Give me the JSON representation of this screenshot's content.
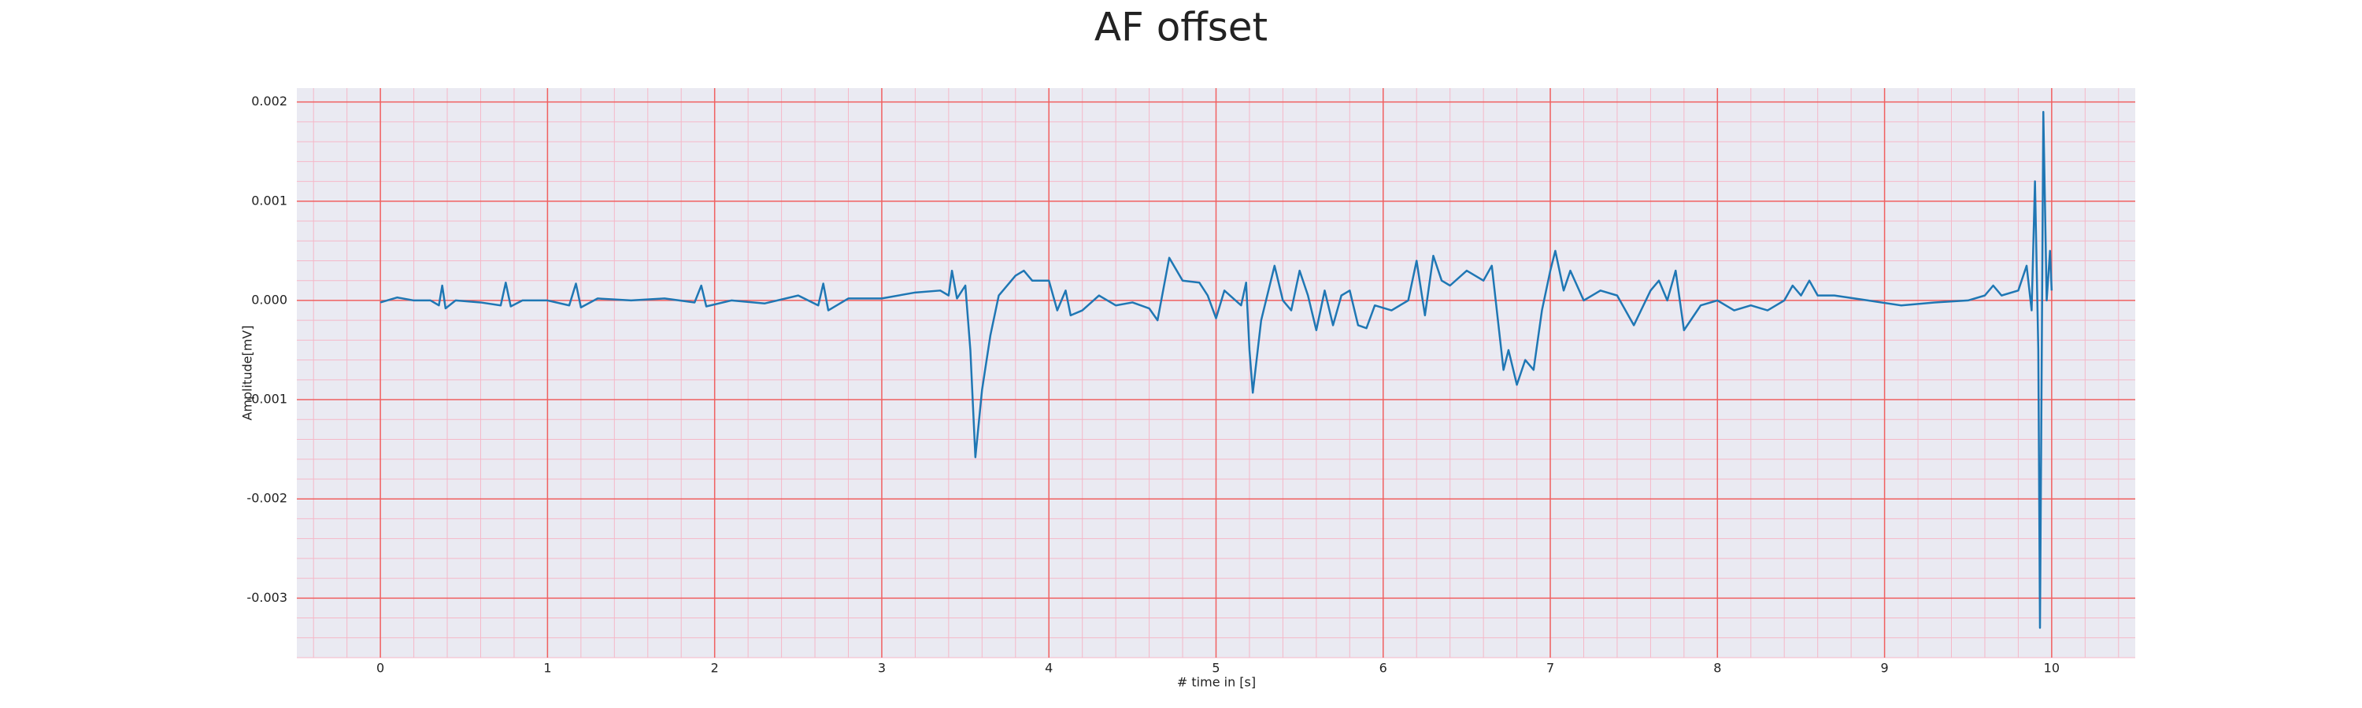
{
  "chart_data": {
    "type": "line",
    "title": "AF offset",
    "xlabel": "# time in [s]",
    "ylabel": "Amplitude[mV]",
    "x": [
      0,
      0.1,
      0.2,
      0.3,
      0.35,
      0.37,
      0.39,
      0.45,
      0.6,
      0.72,
      0.75,
      0.78,
      0.85,
      1.0,
      1.13,
      1.17,
      1.2,
      1.3,
      1.5,
      1.7,
      1.88,
      1.92,
      1.95,
      2.1,
      2.3,
      2.5,
      2.62,
      2.65,
      2.68,
      2.8,
      3.0,
      3.2,
      3.35,
      3.4,
      3.42,
      3.45,
      3.5,
      3.53,
      3.56,
      3.6,
      3.65,
      3.7,
      3.8,
      3.85,
      3.9,
      4.0,
      4.05,
      4.1,
      4.13,
      4.2,
      4.3,
      4.4,
      4.5,
      4.6,
      4.65,
      4.72,
      4.8,
      4.9,
      4.95,
      5.0,
      5.05,
      5.15,
      5.18,
      5.2,
      5.22,
      5.27,
      5.35,
      5.4,
      5.45,
      5.5,
      5.55,
      5.6,
      5.65,
      5.7,
      5.75,
      5.8,
      5.85,
      5.9,
      5.95,
      6.05,
      6.15,
      6.2,
      6.25,
      6.3,
      6.35,
      6.4,
      6.5,
      6.6,
      6.65,
      6.7,
      6.72,
      6.75,
      6.8,
      6.85,
      6.9,
      6.95,
      7.0,
      7.03,
      7.08,
      7.12,
      7.2,
      7.3,
      7.4,
      7.5,
      7.6,
      7.65,
      7.7,
      7.75,
      7.8,
      7.9,
      8.0,
      8.1,
      8.2,
      8.3,
      8.4,
      8.45,
      8.5,
      8.55,
      8.6,
      8.7,
      8.9,
      9.1,
      9.3,
      9.5,
      9.6,
      9.65,
      9.7,
      9.8,
      9.85,
      9.88,
      9.9,
      9.92,
      9.93,
      9.95,
      9.97,
      9.99,
      10.0
    ],
    "values": [
      -2e-05,
      3e-05,
      0.0,
      0.0,
      -5e-05,
      0.00015,
      -8e-05,
      0.0,
      -2e-05,
      -5e-05,
      0.00018,
      -6e-05,
      0.0,
      0.0,
      -5e-05,
      0.00017,
      -7e-05,
      2e-05,
      0.0,
      2e-05,
      -2e-05,
      0.00015,
      -6e-05,
      0.0,
      -3e-05,
      5e-05,
      -5e-05,
      0.00017,
      -0.0001,
      2e-05,
      2e-05,
      8e-05,
      0.0001,
      5e-05,
      0.0003,
      2e-05,
      0.00015,
      -0.0005,
      -0.00158,
      -0.0009,
      -0.00035,
      5e-05,
      0.00025,
      0.0003,
      0.0002,
      0.0002,
      -0.0001,
      0.0001,
      -0.00015,
      -0.0001,
      5e-05,
      -5e-05,
      -2e-05,
      -8e-05,
      -0.0002,
      0.00043,
      0.0002,
      0.00018,
      5e-05,
      -0.00018,
      0.0001,
      -5e-05,
      0.00018,
      -0.0005,
      -0.00093,
      -0.0002,
      0.00035,
      0.0,
      -0.0001,
      0.0003,
      5e-05,
      -0.0003,
      0.0001,
      -0.00025,
      5e-05,
      0.0001,
      -0.00025,
      -0.00028,
      -5e-05,
      -0.0001,
      0.0,
      0.0004,
      -0.00015,
      0.00045,
      0.0002,
      0.00015,
      0.0003,
      0.0002,
      0.00035,
      -0.0004,
      -0.0007,
      -0.0005,
      -0.00085,
      -0.0006,
      -0.0007,
      -0.0001,
      0.0003,
      0.0005,
      0.0001,
      0.0003,
      0.0,
      0.0001,
      5e-05,
      -0.00025,
      0.0001,
      0.0002,
      0.0,
      0.0003,
      -0.0003,
      -5e-05,
      0.0,
      -0.0001,
      -5e-05,
      -0.0001,
      0.0,
      0.00015,
      5e-05,
      0.0002,
      5e-05,
      5e-05,
      0.0,
      -5e-05,
      -2e-05,
      0.0,
      5e-05,
      0.00015,
      5e-05,
      0.0001,
      0.00035,
      -0.0001,
      0.0012,
      -0.0005,
      -0.0033,
      0.0019,
      0.0,
      0.0005,
      0.0001
    ],
    "color": "#1f77b4",
    "xlim": [
      -0.5,
      10.5
    ],
    "xticks": [
      0,
      1,
      2,
      3,
      4,
      5,
      6,
      7,
      8,
      9,
      10
    ],
    "ylim": [
      -0.0036,
      0.00214
    ],
    "yticks": [
      {
        "value": -0.003,
        "label": "-0.003"
      },
      {
        "value": -0.002,
        "label": "-0.002"
      },
      {
        "value": -0.001,
        "label": "-0.001"
      },
      {
        "value": 0,
        "label": "0.000"
      },
      0.001,
      0.002
    ],
    "grid": true,
    "minor_grid": true
  }
}
